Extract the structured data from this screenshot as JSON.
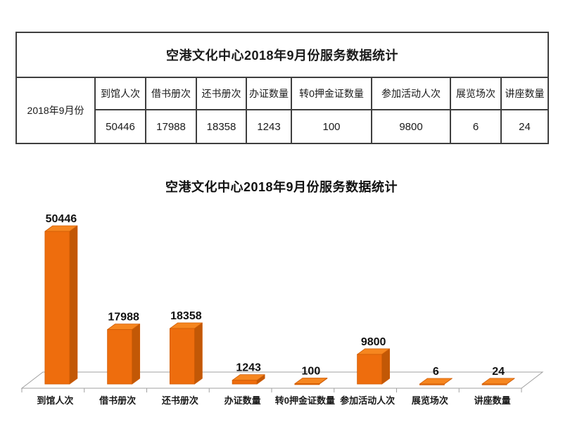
{
  "table": {
    "title": "空港文化中心2018年9月份服务数据统计",
    "row_label": "2018年9月份",
    "headers": [
      "到馆人次",
      "借书册次",
      "还书册次",
      "办证数量",
      "转0押金证数量",
      "参加活动人次",
      "展览场次",
      "讲座数量"
    ],
    "values": [
      "50446",
      "17988",
      "18358",
      "1243",
      "100",
      "9800",
      "6",
      "24"
    ]
  },
  "chart_data": {
    "type": "bar",
    "style": "3d",
    "title": "空港文化中心2018年9月份服务数据统计",
    "categories": [
      "到馆人次",
      "借书册次",
      "还书册次",
      "办证数量",
      "转0押金证数量",
      "参加活动人次",
      "展览场次",
      "讲座数量"
    ],
    "values": [
      50446,
      17988,
      18358,
      1243,
      100,
      9800,
      6,
      24
    ],
    "value_labels": [
      "50446",
      "17988",
      "18358",
      "1243",
      "100",
      "9800",
      "6",
      "24"
    ],
    "ylim": [
      0,
      50446
    ],
    "grid": false,
    "legend": "none",
    "colors": {
      "bar_front": "#EE6D0D",
      "bar_top": "#F6861F",
      "bar_side": "#C25806",
      "bar_edge": "#CF5C05",
      "axis": "#A0A0A0",
      "floor_fill": "#FEFEFE",
      "label": "#111111"
    }
  }
}
